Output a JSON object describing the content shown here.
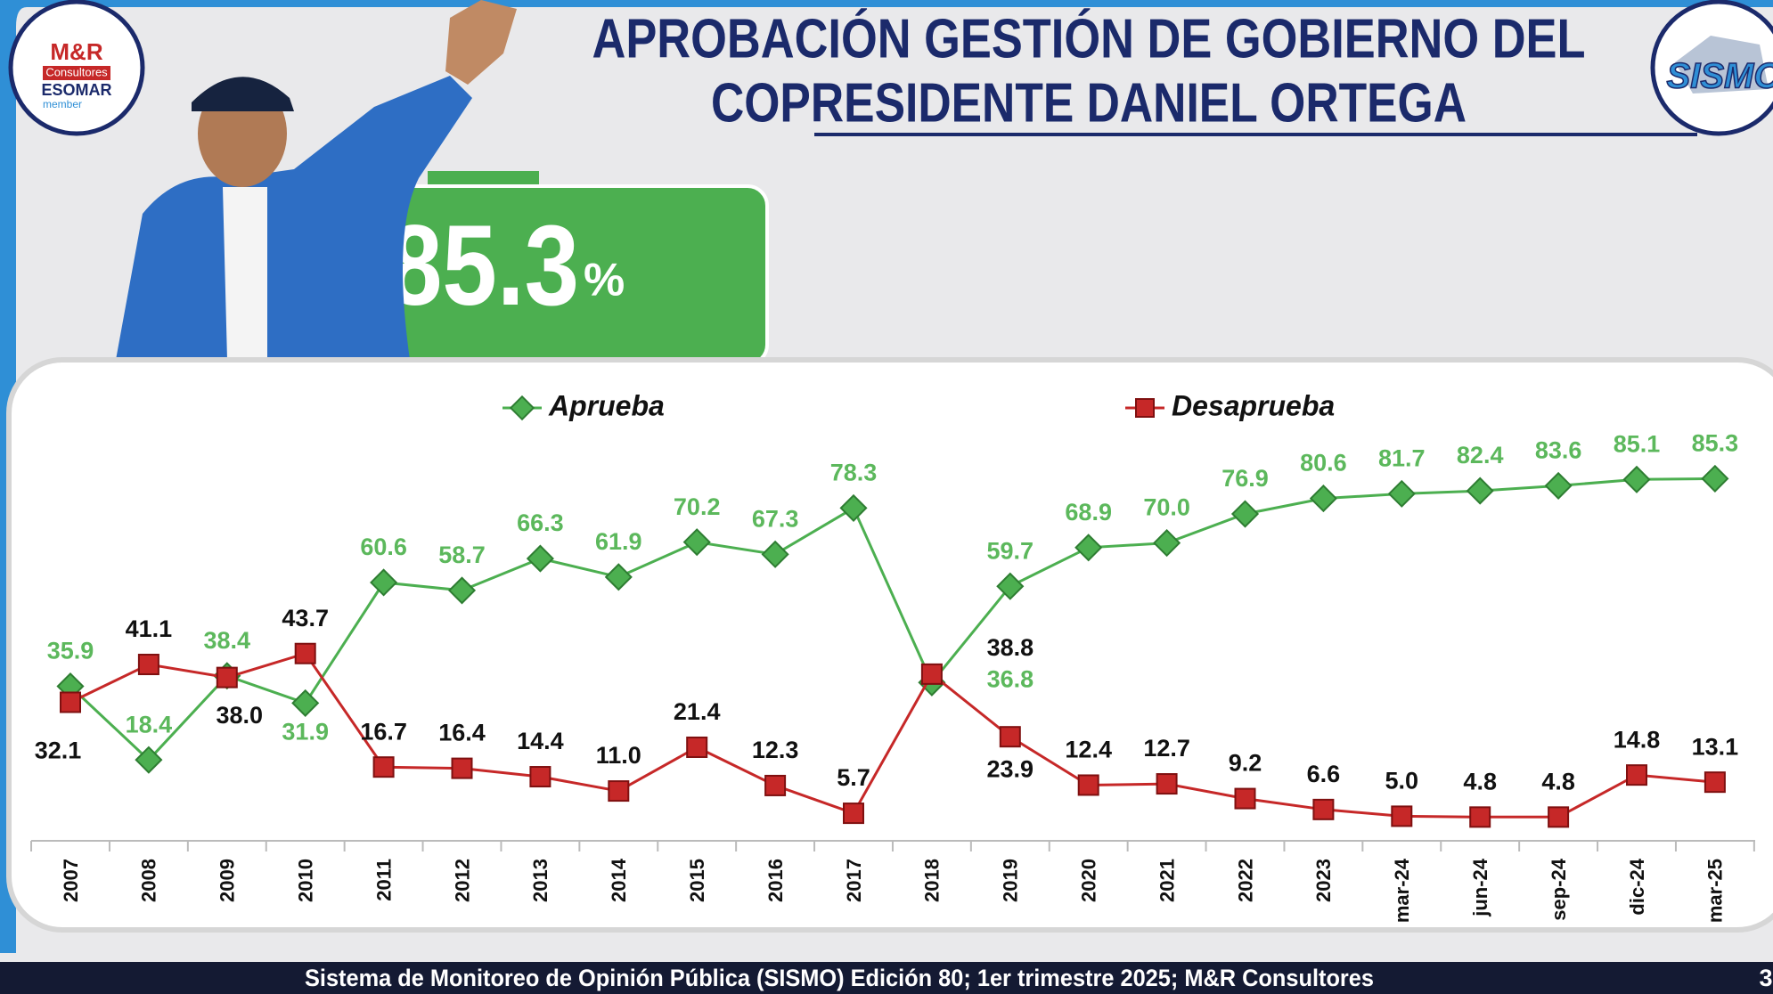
{
  "header": {
    "title_line1": "APROBACIÓN GESTIÓN DE GOBIERNO DEL",
    "title_line2": "COPRESIDENTE DANIEL ORTEGA",
    "logo_left": [
      "M&R",
      "Consultores",
      "ESOMAR",
      "member"
    ],
    "logo_right": "SISMO"
  },
  "headline": {
    "number": "85.3",
    "unit": "%"
  },
  "chart_data": {
    "type": "line",
    "categories": [
      "2007",
      "2008",
      "2009",
      "2010",
      "2011",
      "2012",
      "2013",
      "2014",
      "2015",
      "2016",
      "2017",
      "2018",
      "2019",
      "2020",
      "2021",
      "2022",
      "2023",
      "mar-24",
      "jun-24",
      "sep-24",
      "dic-24",
      "mar-25"
    ],
    "series": [
      {
        "name": "Aprueba",
        "color": "#4caf50",
        "values": [
          35.9,
          18.4,
          38.4,
          31.9,
          60.6,
          58.7,
          66.3,
          61.9,
          70.2,
          67.3,
          78.3,
          36.8,
          59.7,
          68.9,
          70.0,
          76.9,
          80.6,
          81.7,
          82.4,
          83.6,
          85.1,
          85.3
        ],
        "value_labels": [
          "35.9",
          "18.4",
          "38.4",
          "31.9",
          "60.6",
          "58.7",
          "66.3",
          "61.9",
          "70.2",
          "67.3",
          "78.3",
          "36.8",
          "59.7",
          "68.9",
          "70.0",
          "76.9",
          "80.6",
          "81.7",
          "82.4",
          "83.6",
          "85.1",
          "85.3"
        ]
      },
      {
        "name": "Desaprueba",
        "color": "#c62828",
        "values": [
          32.1,
          41.1,
          38.0,
          43.7,
          16.7,
          16.4,
          14.4,
          11.0,
          21.4,
          12.3,
          5.7,
          38.8,
          23.9,
          12.4,
          12.7,
          9.2,
          6.6,
          5.0,
          4.8,
          4.8,
          14.8,
          13.1
        ],
        "value_labels": [
          "32.1",
          "41.1",
          "38.0",
          "43.7",
          "16.7",
          "16.4",
          "14.4",
          "11.0",
          "21.4",
          "12.3",
          "5.7",
          "38.8",
          "23.9",
          "12.4",
          "12.7",
          "9.2",
          "6.6",
          "5.0",
          "4.8",
          "4.8",
          "14.8",
          "13.1"
        ]
      }
    ]
  },
  "footer": {
    "source": "Sistema de Monitoreo de Opinión Pública (SISMO) Edición 80; 1er trimestre 2025; M&R Consultores",
    "page": "3"
  }
}
